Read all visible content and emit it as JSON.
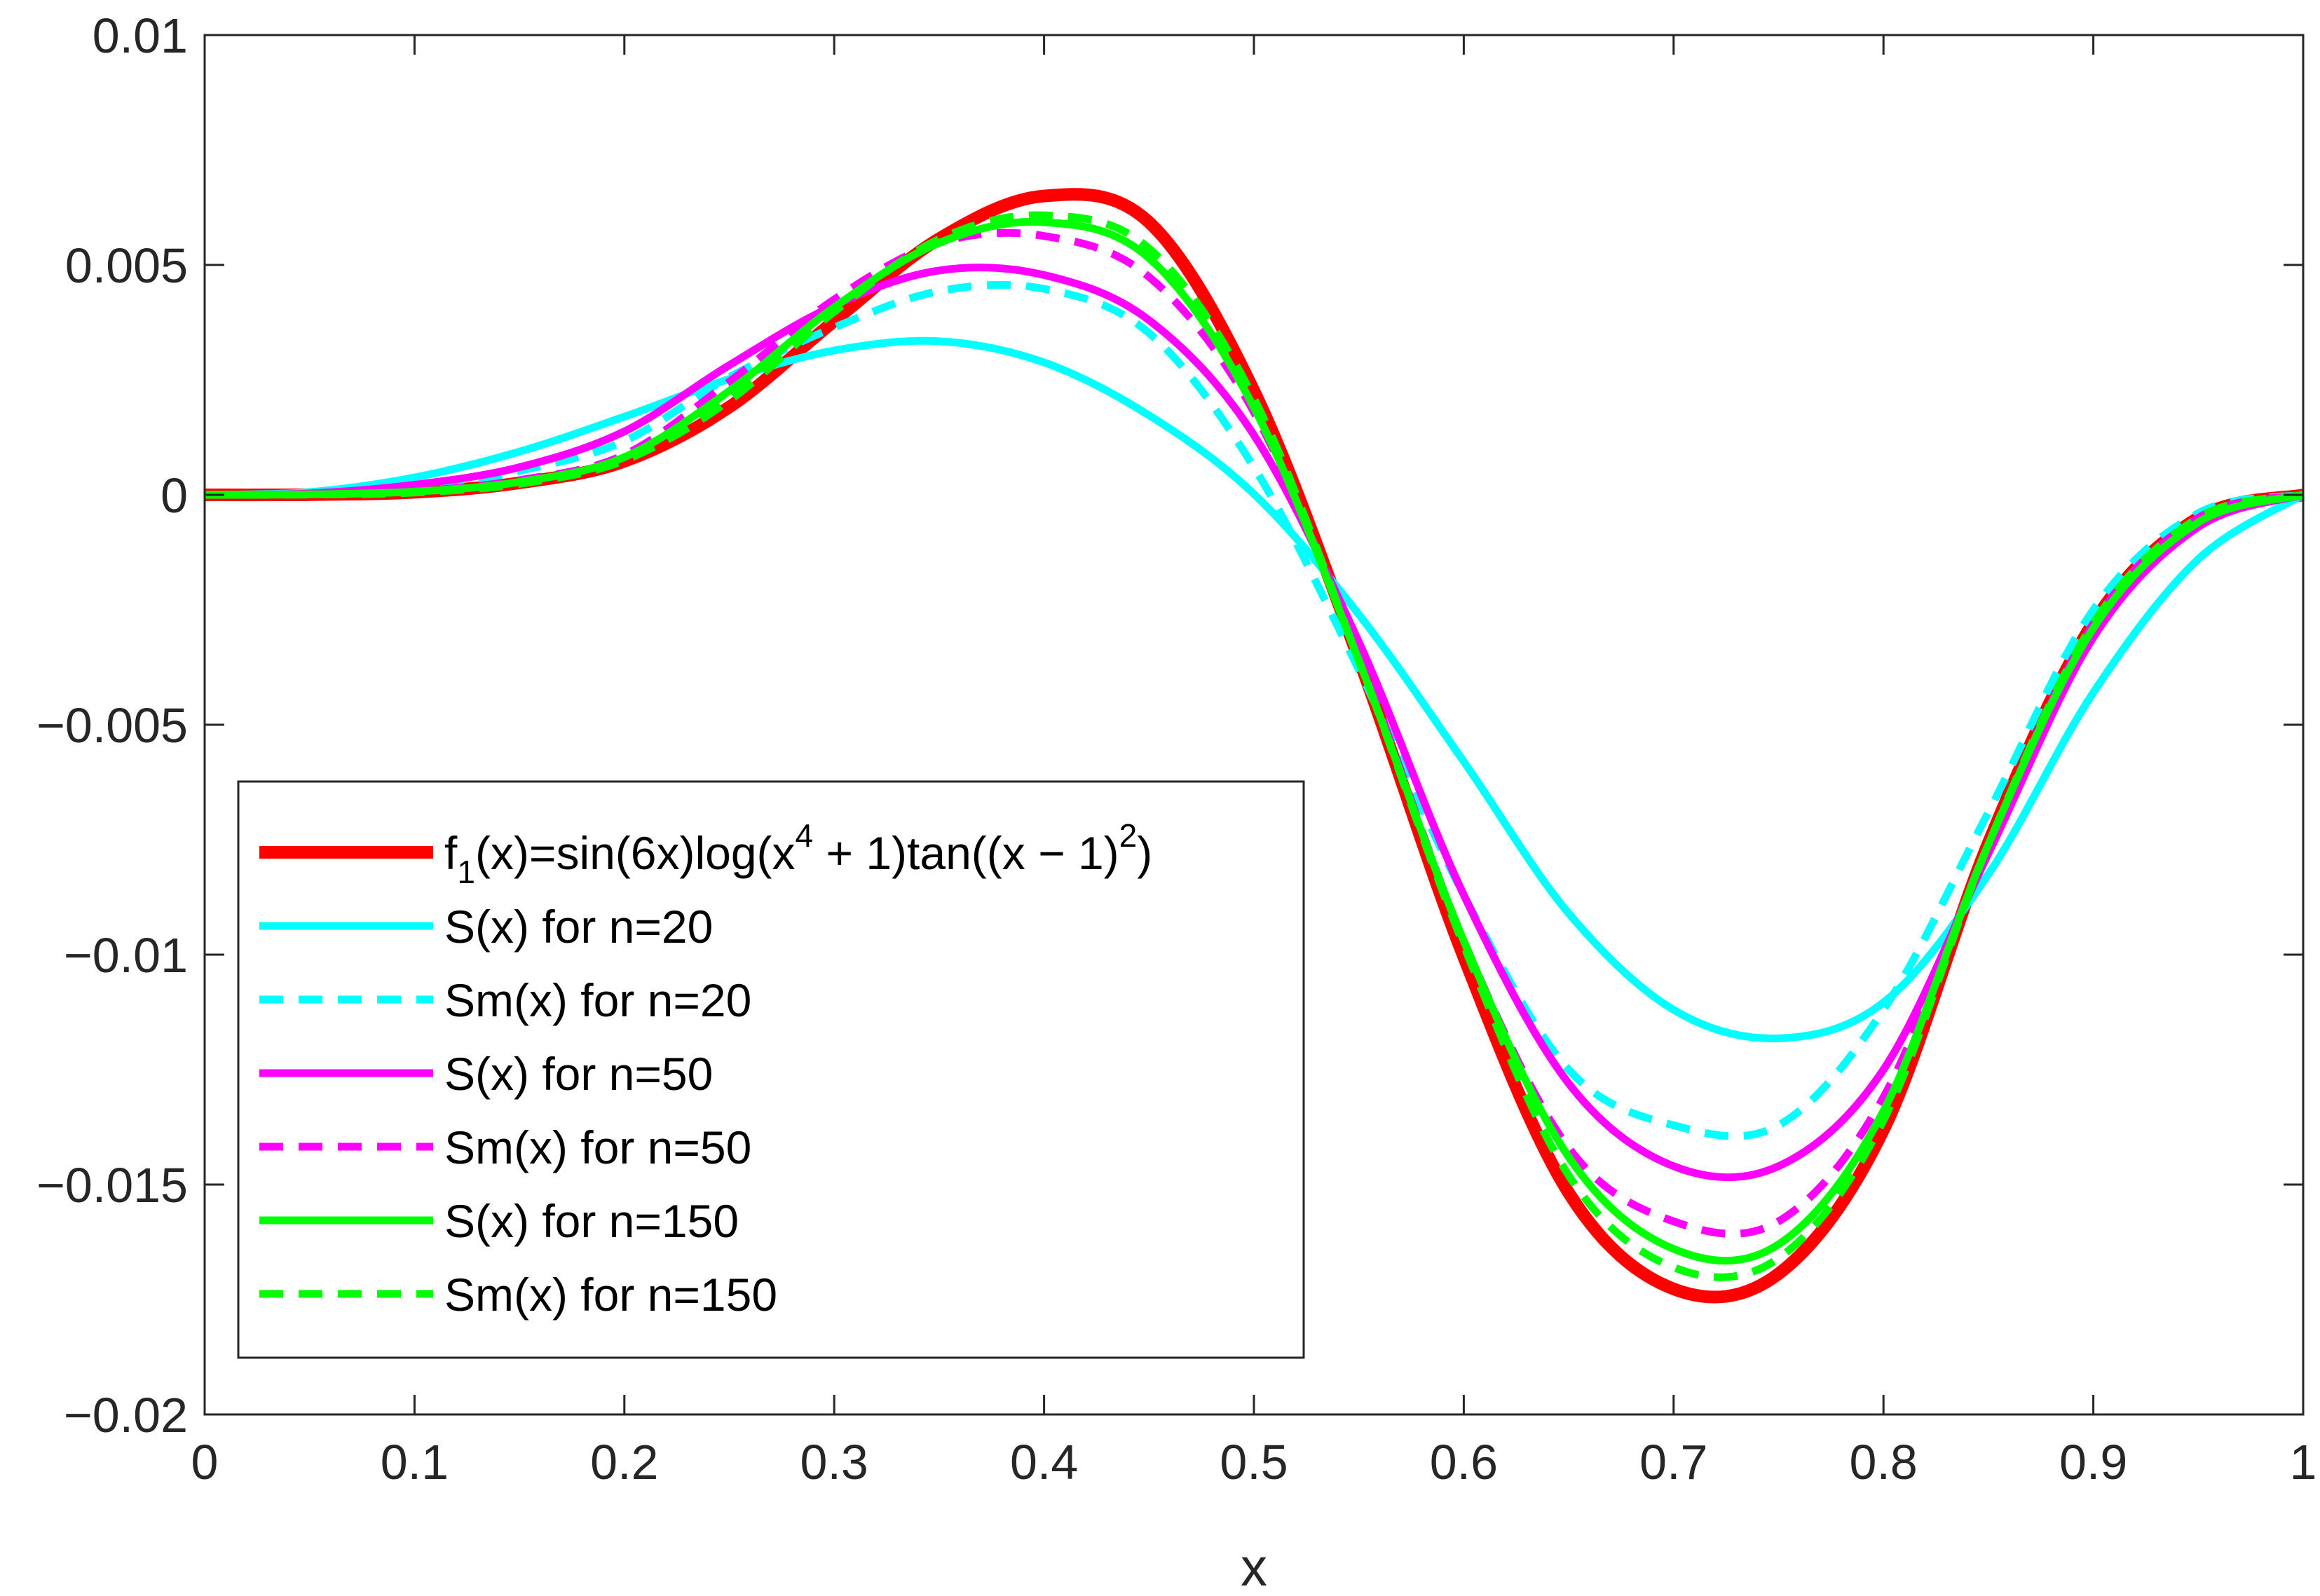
{
  "chart_data": {
    "type": "line",
    "title": "",
    "xlabel": "x",
    "ylabel": "",
    "xlim": [
      0,
      1
    ],
    "ylim": [
      -0.02,
      0.01
    ],
    "grid": false,
    "legend_position": "lower-left",
    "x_ticks": [
      0,
      0.1,
      0.2,
      0.3,
      0.4,
      0.5,
      0.6,
      0.7,
      0.8,
      0.9,
      1
    ],
    "x_tick_labels": [
      "0",
      "0.1",
      "0.2",
      "0.3",
      "0.4",
      "0.5",
      "0.6",
      "0.7",
      "0.8",
      "0.9",
      "1"
    ],
    "y_ticks": [
      0.01,
      0.005,
      0,
      -0.005,
      -0.01,
      -0.015,
      -0.02
    ],
    "y_tick_labels": [
      "0.01",
      "0.005",
      "0",
      "−0.005",
      "−0.01",
      "−0.015",
      "−0.02"
    ],
    "x": [
      0,
      0.05,
      0.1,
      0.15,
      0.2,
      0.25,
      0.3,
      0.35,
      0.4,
      0.45,
      0.5,
      0.55,
      0.6,
      0.65,
      0.7,
      0.75,
      0.8,
      0.85,
      0.9,
      0.95,
      1
    ],
    "series": [
      {
        "name": "f1(x)=sin(6x)log(x4 + 1)tan((x−1)2)",
        "legend": {
          "base": "f",
          "sub": "1",
          "mid": "(x)=sin(6x)log(x",
          "sup1": "4",
          "mid2": " + 1)tan((x − 1)",
          "sup2": "2",
          "end": ")"
        },
        "color": "#ff0000",
        "dash": "solid",
        "weight": "thick",
        "values": [
          0,
          4e-06,
          5.5e-05,
          0.00026,
          0.00073,
          0.00191,
          0.00378,
          0.00557,
          0.0065,
          0.00593,
          0.00226,
          -0.00357,
          -0.01005,
          -0.01518,
          -0.01727,
          -0.01694,
          -0.01381,
          -0.00757,
          -0.00278,
          -0.0005,
          0
        ]
      },
      {
        "name": "S(x) for n=20",
        "color": "#00ffff",
        "dash": "solid",
        "weight": "normal",
        "values": [
          0,
          6e-05,
          0.00038,
          0.00094,
          0.0017,
          0.00252,
          0.00314,
          0.00334,
          0.00288,
          0.00173,
          2e-05,
          -0.0026,
          -0.0058,
          -0.0091,
          -0.0112,
          -0.01182,
          -0.01104,
          -0.00825,
          -0.0043,
          -0.0014,
          0
        ]
      },
      {
        "name": "Sm(x) for n=20",
        "color": "#00ffff",
        "dash": "dashed",
        "weight": "normal",
        "values": [
          0,
          2e-05,
          0.00013,
          0.00052,
          0.00117,
          0.00256,
          0.00364,
          0.00443,
          0.00448,
          0.00352,
          0.0006,
          -0.0038,
          -0.0087,
          -0.0125,
          -0.01371,
          -0.01371,
          -0.0112,
          -0.0069,
          -0.0025,
          -0.0004,
          0
        ]
      },
      {
        "name": "S(x) for n=50",
        "color": "#ff00ff",
        "dash": "solid",
        "weight": "normal",
        "values": [
          0,
          3e-05,
          0.00022,
          0.0006,
          0.00138,
          0.00282,
          0.00412,
          0.00488,
          0.00478,
          0.0038,
          0.0013,
          -0.0032,
          -0.0087,
          -0.0128,
          -0.0146,
          -0.0146,
          -0.0125,
          -0.0078,
          -0.0031,
          -0.0007,
          0
        ]
      },
      {
        "name": "Sm(x) for n=50",
        "color": "#ff00ff",
        "dash": "dashed",
        "weight": "normal",
        "values": [
          0,
          1e-05,
          8e-05,
          0.00032,
          0.00087,
          0.00246,
          0.00425,
          0.00548,
          0.00563,
          0.00474,
          0.0018,
          -0.0035,
          -0.0097,
          -0.0142,
          -0.0158,
          -0.0158,
          -0.0131,
          -0.0076,
          -0.0028,
          -0.0005,
          0
        ]
      },
      {
        "name": "S(x) for n=150",
        "color": "#00ff00",
        "dash": "solid",
        "weight": "normal",
        "values": [
          0,
          1e-05,
          7e-05,
          0.00028,
          0.00082,
          0.00226,
          0.00408,
          0.00548,
          0.00593,
          0.00515,
          0.0019,
          -0.0036,
          -0.0097,
          -0.0144,
          -0.0164,
          -0.0163,
          -0.0134,
          -0.0076,
          -0.0029,
          -0.0006,
          0
        ]
      },
      {
        "name": "Sm(x) for n=150",
        "color": "#00ff00",
        "dash": "dashed",
        "weight": "normal",
        "values": [
          0,
          5e-06,
          5e-05,
          0.00024,
          0.00075,
          0.00205,
          0.00398,
          0.00556,
          0.00608,
          0.00536,
          0.0021,
          -0.0036,
          -0.0098,
          -0.0148,
          -0.0168,
          -0.0166,
          -0.0136,
          -0.0076,
          -0.0028,
          -0.0005,
          0
        ]
      }
    ]
  }
}
